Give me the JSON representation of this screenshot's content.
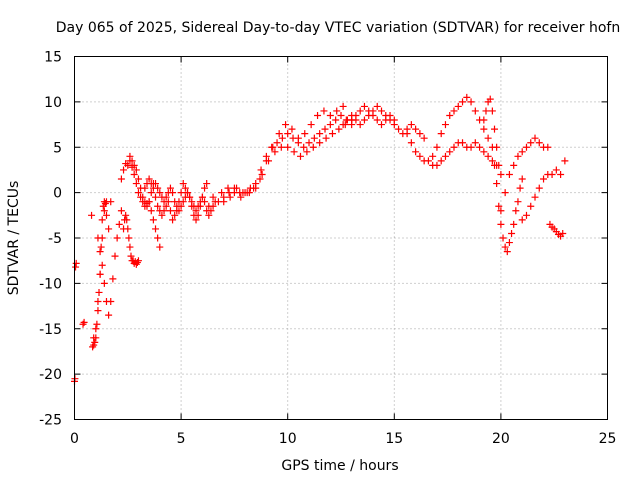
{
  "chart_data": {
    "type": "scatter",
    "title": "Day 065 of 2025, Sidereal Day-to-day VTEC variation (SDTVAR) for receiver hofn",
    "xlabel": "GPS time / hours",
    "ylabel": "SDTVAR / TECUs",
    "xlim": [
      0,
      25
    ],
    "ylim": [
      -25,
      15
    ],
    "xticks": [
      0,
      5,
      10,
      15,
      20,
      25
    ],
    "yticks": [
      -25,
      -20,
      -15,
      -10,
      -5,
      0,
      5,
      10,
      15
    ],
    "grid": true,
    "marker": "+",
    "color": "#ff0000",
    "series": [
      {
        "name": "early-a",
        "x": [
          0.0,
          0.02,
          0.05,
          0.08
        ],
        "y": [
          -20.8,
          -20.5,
          -8.2,
          -7.8
        ]
      },
      {
        "name": "early-b",
        "x": [
          0.4,
          0.45,
          0.8,
          0.85,
          0.9,
          0.95,
          1.0,
          1.05,
          1.1,
          1.15,
          1.2,
          1.25,
          1.3,
          1.35,
          1.4,
          1.45,
          1.5
        ],
        "y": [
          -14.5,
          -14.3,
          -2.5,
          -17.0,
          -16.8,
          -16.5,
          -16.0,
          -14.5,
          -13.0,
          -11.0,
          -9.0,
          -6.0,
          -3.0,
          -1.5,
          -1.0,
          -1.2,
          -1.0
        ]
      },
      {
        "name": "early-c",
        "x": [
          1.1,
          1.2,
          1.3,
          1.4,
          1.5,
          1.6,
          1.7,
          1.8,
          1.9,
          2.0,
          2.1,
          2.2
        ],
        "y": [
          -5.0,
          -6.5,
          -8.0,
          -10.0,
          -12.0,
          -13.5,
          -12.0,
          -9.5,
          -7.0,
          -5.0,
          -3.5,
          -2.0
        ]
      },
      {
        "name": "early-d",
        "x": [
          0.9,
          1.0,
          1.1,
          1.2,
          1.3,
          1.4,
          1.5,
          1.6,
          1.7
        ],
        "y": [
          -16.0,
          -15.0,
          -12.0,
          -9.0,
          -5.0,
          -2.0,
          -2.5,
          -4.0,
          -1.0
        ]
      },
      {
        "name": "seg-2h",
        "x": [
          2.3,
          2.35,
          2.4,
          2.45,
          2.5,
          2.55,
          2.6,
          2.65,
          2.7,
          2.75,
          2.8,
          2.85,
          2.9,
          2.95,
          3.0
        ],
        "y": [
          -4.0,
          -3.0,
          -2.5,
          -3.0,
          -4.0,
          -5.0,
          -6.0,
          -7.0,
          -7.5,
          -7.5,
          -7.8,
          -7.6,
          -7.9,
          -7.7,
          -7.5
        ]
      },
      {
        "name": "seg-2-5h",
        "x": [
          2.2,
          2.3,
          2.4,
          2.5,
          2.6,
          2.7,
          2.8,
          2.9,
          3.0,
          3.1,
          3.2,
          3.3,
          3.4,
          3.5,
          3.6,
          3.7,
          3.8,
          3.9,
          4.0
        ],
        "y": [
          1.5,
          2.5,
          3.2,
          3.0,
          3.5,
          2.8,
          2.0,
          1.0,
          0.0,
          -0.5,
          -1.0,
          -1.5,
          -1.2,
          -1.0,
          -2.0,
          -3.0,
          -4.0,
          -5.0,
          -6.0
        ]
      },
      {
        "name": "seg-3h",
        "x": [
          2.6,
          2.7,
          2.8,
          2.9,
          3.0,
          3.1,
          3.2,
          3.3,
          3.4,
          3.5,
          3.6,
          3.7,
          3.8,
          3.9,
          4.0,
          4.1,
          4.2,
          4.3,
          4.4,
          4.5,
          4.6,
          4.7,
          4.8,
          4.9,
          5.0,
          5.1,
          5.2,
          5.3,
          5.4,
          5.5,
          5.6,
          5.7,
          5.8,
          5.9,
          6.0,
          6.1,
          6.2,
          6.3,
          6.4,
          6.5
        ],
        "y": [
          4.0,
          3.5,
          3.0,
          2.5,
          1.5,
          0.5,
          -0.5,
          -1.0,
          -1.5,
          -1.0,
          0.0,
          1.0,
          1.0,
          0.5,
          0.0,
          -0.5,
          -1.0,
          -0.5,
          0.0,
          0.5,
          0.0,
          -1.0,
          -1.5,
          -2.0,
          -1.5,
          -1.0,
          -0.5,
          0.0,
          -0.5,
          -1.0,
          -1.5,
          -2.0,
          -1.5,
          -1.0,
          -0.5,
          -1.0,
          -2.0,
          -2.5,
          -2.0,
          -1.5
        ]
      },
      {
        "name": "seg-4h",
        "x": [
          3.3,
          3.4,
          3.5,
          3.6,
          3.7,
          3.8,
          3.9,
          4.0,
          4.1,
          4.2,
          4.3,
          4.4,
          4.5,
          4.6,
          4.7,
          4.8,
          4.9,
          5.0,
          5.1,
          5.2,
          5.3,
          5.4,
          5.5,
          5.6,
          5.7,
          5.8,
          5.9,
          6.0,
          6.1,
          6.2
        ],
        "y": [
          0.5,
          1.0,
          1.5,
          1.0,
          0.5,
          -0.5,
          -1.5,
          -2.0,
          -2.5,
          -2.0,
          -1.5,
          -1.0,
          -2.0,
          -3.0,
          -2.5,
          -2.0,
          -1.0,
          0.0,
          1.0,
          0.5,
          0.0,
          -0.5,
          -1.5,
          -2.5,
          -3.0,
          -2.5,
          -1.5,
          -0.5,
          0.5,
          1.0
        ]
      },
      {
        "name": "seg-mid-a",
        "x": [
          6.5,
          6.75,
          7.0,
          7.25,
          7.5,
          7.75,
          8.0,
          8.25,
          8.5,
          8.75,
          9.0,
          9.25,
          9.5,
          9.75,
          10.0,
          10.25,
          10.5,
          10.75,
          11.0,
          11.25,
          11.5,
          11.75,
          12.0,
          12.25,
          12.5,
          12.75,
          13.0
        ],
        "y": [
          -0.5,
          -1.0,
          -0.5,
          0.0,
          0.5,
          0.0,
          0.0,
          0.5,
          1.0,
          2.5,
          4.0,
          5.0,
          5.5,
          6.0,
          6.5,
          6.0,
          5.5,
          5.0,
          5.5,
          6.0,
          6.5,
          7.0,
          7.5,
          8.0,
          8.5,
          8.0,
          7.5
        ]
      },
      {
        "name": "seg-mid-b",
        "x": [
          6.3,
          6.6,
          6.9,
          7.2,
          7.5,
          7.8,
          8.1,
          8.4,
          8.7,
          9.0,
          9.3,
          9.6,
          9.9,
          10.2,
          10.5,
          10.8,
          11.1,
          11.4,
          11.7,
          12.0,
          12.3,
          12.6
        ],
        "y": [
          -1.5,
          -1.0,
          0.0,
          0.5,
          0.0,
          -0.5,
          0.0,
          0.5,
          1.5,
          3.5,
          5.0,
          6.5,
          7.5,
          7.0,
          6.0,
          6.5,
          7.5,
          8.5,
          9.0,
          8.5,
          9.0,
          9.5
        ]
      },
      {
        "name": "seg-mid-c",
        "x": [
          7.0,
          7.3,
          7.6,
          7.9,
          8.2,
          8.5,
          8.8,
          9.1,
          9.4,
          9.7,
          10.0,
          10.3,
          10.6,
          10.9,
          11.2,
          11.5,
          11.8,
          12.1,
          12.4,
          12.7,
          13.0
        ],
        "y": [
          -1.0,
          -0.5,
          0.5,
          0.0,
          0.0,
          0.5,
          2.0,
          3.5,
          4.5,
          5.0,
          5.0,
          4.5,
          4.0,
          4.5,
          5.0,
          5.5,
          6.0,
          6.5,
          7.0,
          7.5,
          8.0
        ]
      },
      {
        "name": "seg-12-16h",
        "x": [
          12.6,
          12.8,
          13.0,
          13.2,
          13.4,
          13.6,
          13.8,
          14.0,
          14.2,
          14.4,
          14.6,
          14.8,
          15.0,
          15.2,
          15.4,
          15.6,
          15.8,
          16.0,
          16.2,
          16.4
        ],
        "y": [
          7.5,
          8.0,
          8.5,
          8.0,
          7.5,
          8.0,
          8.5,
          9.0,
          9.5,
          9.0,
          8.5,
          8.0,
          7.5,
          7.0,
          6.5,
          7.0,
          7.5,
          7.0,
          6.5,
          6.0
        ]
      },
      {
        "name": "seg-13-15h",
        "x": [
          13.0,
          13.2,
          13.4,
          13.6,
          13.8,
          14.0,
          14.2,
          14.4,
          14.6,
          14.8,
          15.0
        ],
        "y": [
          8.0,
          8.5,
          9.0,
          9.5,
          9.0,
          8.5,
          8.0,
          7.5,
          8.0,
          8.5,
          8.0
        ]
      },
      {
        "name": "seg-16-20h",
        "x": [
          15.6,
          15.8,
          16.0,
          16.2,
          16.4,
          16.6,
          16.8,
          17.0,
          17.2,
          17.4,
          17.6,
          17.8,
          18.0,
          18.2,
          18.4,
          18.6,
          18.8,
          19.0,
          19.2,
          19.4,
          19.6,
          19.8
        ],
        "y": [
          6.5,
          5.5,
          4.5,
          4.0,
          3.5,
          3.5,
          3.0,
          3.0,
          3.5,
          4.0,
          4.5,
          5.0,
          5.5,
          5.5,
          5.0,
          5.0,
          5.5,
          5.0,
          4.5,
          4.0,
          3.5,
          3.0
        ]
      },
      {
        "name": "seg-17-19h",
        "x": [
          16.8,
          17.0,
          17.2,
          17.4,
          17.6,
          17.8,
          18.0,
          18.2,
          18.4,
          18.6,
          18.8,
          19.0,
          19.2,
          19.4,
          19.6
        ],
        "y": [
          4.0,
          5.0,
          6.5,
          7.5,
          8.5,
          9.0,
          9.5,
          10.0,
          10.5,
          10.0,
          9.0,
          8.0,
          7.0,
          6.0,
          5.0
        ]
      },
      {
        "name": "seg-19-20h",
        "x": [
          19.2,
          19.3,
          19.4,
          19.5,
          19.6,
          19.7,
          19.8,
          19.9,
          20.0
        ],
        "y": [
          8.0,
          9.0,
          10.0,
          10.3,
          9.0,
          7.0,
          5.0,
          3.0,
          2.0
        ]
      },
      {
        "name": "seg-20-21h",
        "x": [
          19.7,
          19.8,
          19.9,
          20.0,
          20.1,
          20.2,
          20.3,
          20.4,
          20.5,
          20.6,
          20.7,
          20.8,
          20.9,
          21.0
        ],
        "y": [
          3.0,
          1.0,
          -1.5,
          -3.5,
          -5.0,
          -6.0,
          -6.5,
          -5.5,
          -4.5,
          -3.5,
          -2.0,
          -1.0,
          0.5,
          1.5
        ]
      },
      {
        "name": "seg-20-22h",
        "x": [
          20.0,
          20.2,
          20.4,
          20.6,
          20.8,
          21.0,
          21.2,
          21.4,
          21.6,
          21.8,
          22.0,
          22.2
        ],
        "y": [
          -2.0,
          0.0,
          2.0,
          3.0,
          4.0,
          4.5,
          5.0,
          5.5,
          6.0,
          5.5,
          5.0,
          5.0
        ]
      },
      {
        "name": "seg-21-23h",
        "x": [
          21.0,
          21.2,
          21.4,
          21.6,
          21.8,
          22.0,
          22.2,
          22.4,
          22.6,
          22.8,
          23.0
        ],
        "y": [
          -3.0,
          -2.5,
          -1.5,
          -0.5,
          0.5,
          1.5,
          2.0,
          2.0,
          2.5,
          2.0,
          3.5
        ]
      },
      {
        "name": "seg-late",
        "x": [
          22.3,
          22.4,
          22.5,
          22.6,
          22.7,
          22.8,
          22.9
        ],
        "y": [
          -3.5,
          -3.8,
          -4.0,
          -4.3,
          -4.6,
          -4.8,
          -4.5
        ]
      }
    ]
  }
}
